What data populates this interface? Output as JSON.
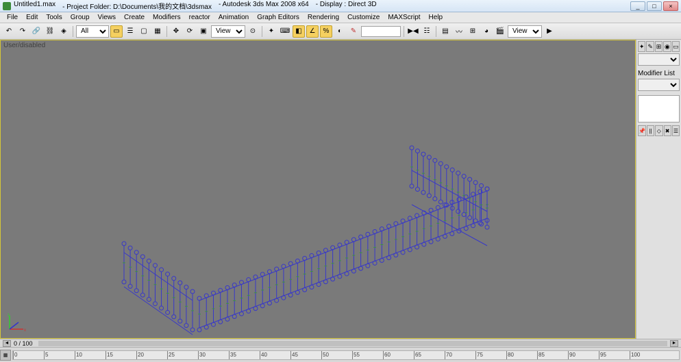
{
  "title": {
    "filename": "Untitled1.max",
    "project": "- Project Folder: D:\\Documents\\我的文档\\3dsmax",
    "app": "- Autodesk 3ds Max 2008 x64",
    "display": "- Display : Direct 3D"
  },
  "menu": {
    "items": [
      "File",
      "Edit",
      "Tools",
      "Group",
      "Views",
      "Create",
      "Modifiers",
      "reactor",
      "Animation",
      "Graph Editors",
      "Rendering",
      "Customize",
      "MAXScript",
      "Help"
    ]
  },
  "toolbar": {
    "selection_filter": "All",
    "view1": "View",
    "view2": "View"
  },
  "viewport": {
    "label": "User/disabled",
    "background_color": "#7a7a7a",
    "border_color": "#d6c738",
    "fence": {
      "line_color": "#3838c8",
      "accent_color": "#3a9a3a",
      "stroke_width": 1
    }
  },
  "side_panel": {
    "modifier_list_label": "Modifier List"
  },
  "timeline": {
    "frame_label": "0 / 100",
    "ruler_ticks": [
      0,
      5,
      10,
      15,
      20,
      25,
      30,
      35,
      40,
      45,
      50,
      55,
      60,
      65,
      70,
      75,
      80,
      85,
      90,
      95,
      100
    ]
  },
  "colors": {
    "titlebar_grad_top": "#eaf3fb",
    "titlebar_grad_bot": "#d6e5f5",
    "panel_bg": "#e0e0e0",
    "toolbar_grad_top": "#f0f0f0",
    "toolbar_grad_bot": "#dcdcdc"
  }
}
